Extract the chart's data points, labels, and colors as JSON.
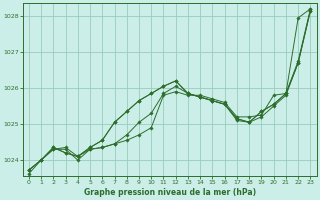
{
  "title": "Graphe pression niveau de la mer (hPa)",
  "bg_color": "#cceee8",
  "grid_color": "#99ccbb",
  "line_color": "#2d6e2d",
  "marker_color": "#2d6e2d",
  "xlim": [
    -0.5,
    23.5
  ],
  "ylim": [
    1023.55,
    1028.35
  ],
  "yticks": [
    1024,
    1025,
    1026,
    1027,
    1028
  ],
  "xticks": [
    0,
    1,
    2,
    3,
    4,
    5,
    6,
    7,
    8,
    9,
    10,
    11,
    12,
    13,
    14,
    15,
    16,
    17,
    18,
    19,
    20,
    21,
    22,
    23
  ],
  "series": [
    [
      1023.72,
      1024.0,
      1024.3,
      1024.35,
      1024.1,
      1024.3,
      1024.35,
      1024.45,
      1024.55,
      1024.7,
      1024.9,
      1025.8,
      1025.9,
      1025.8,
      1025.8,
      1025.7,
      1025.6,
      1025.2,
      1025.2,
      1025.25,
      1025.8,
      1025.85,
      1026.7,
      1028.15
    ],
    [
      1023.72,
      1024.0,
      1024.3,
      1024.3,
      1024.0,
      1024.3,
      1024.35,
      1024.45,
      1024.7,
      1025.05,
      1025.3,
      1025.85,
      1026.05,
      1025.85,
      1025.75,
      1025.65,
      1025.55,
      1025.1,
      1025.05,
      1025.2,
      1025.5,
      1025.8,
      1026.7,
      1028.15
    ],
    [
      1023.72,
      1024.0,
      1024.35,
      1024.2,
      1024.1,
      1024.35,
      1024.55,
      1025.05,
      1025.35,
      1025.65,
      1025.85,
      1026.05,
      1026.2,
      1025.85,
      1025.75,
      1025.65,
      1025.55,
      1025.15,
      1025.05,
      1025.35,
      1025.55,
      1025.85,
      1026.75,
      1028.2
    ],
    [
      1023.62,
      1024.0,
      1024.35,
      1024.2,
      1024.1,
      1024.35,
      1024.55,
      1025.05,
      1025.35,
      1025.65,
      1025.85,
      1026.05,
      1026.2,
      1025.85,
      1025.75,
      1025.65,
      1025.55,
      1025.15,
      1025.05,
      1025.35,
      1025.55,
      1025.85,
      1027.95,
      1028.2
    ]
  ]
}
